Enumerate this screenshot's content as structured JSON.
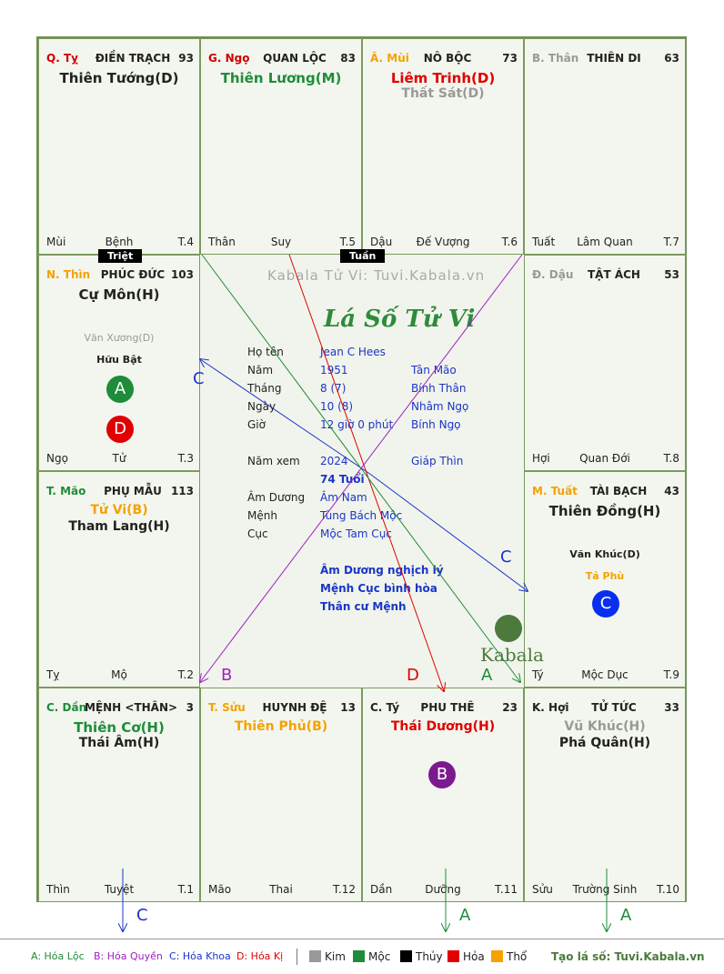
{
  "cells": {
    "ty_top": {
      "palace": "Q. Tỵ",
      "name": "ĐIỀN TRẠCH",
      "score": "93",
      "star1": "Thiên Tướng(D)",
      "bottom_left": "Mùi",
      "bottom_mid": "Bệnh",
      "bottom_right": "T.4"
    },
    "ngo": {
      "palace": "G. Ngọ",
      "name": "QUAN LỘC",
      "score": "83",
      "star1": "Thiên Lương(M)",
      "bottom_left": "Thân",
      "bottom_mid": "Suy",
      "bottom_right": "T.5"
    },
    "mui": {
      "palace": "Ã. Mùi",
      "name": "NÔ BỘC",
      "score": "73",
      "star1": "Liêm Trinh(D)",
      "star2": "Thất Sát(D)",
      "bottom_left": "Dậu",
      "bottom_mid": "Đế Vượng",
      "bottom_right": "T.6"
    },
    "than": {
      "palace": "B. Thân",
      "name": "THIÊN DI",
      "score": "63",
      "bottom_left": "Tuất",
      "bottom_mid": "Lâm Quan",
      "bottom_right": "T.7"
    },
    "thin": {
      "palace": "N. Thìn",
      "name": "PHÚC ĐỨC",
      "score": "103",
      "star1": "Cự Môn(H)",
      "extra1": "Văn Xương(D)",
      "extra2": "Hữu Bật",
      "bottom_left": "Ngọ",
      "bottom_mid": "Tử",
      "bottom_right": "T.3"
    },
    "dau": {
      "palace": "Đ. Dậu",
      "name": "TẬT ÁCH",
      "score": "53",
      "bottom_left": "Hợi",
      "bottom_mid": "Quan Đới",
      "bottom_right": "T.8"
    },
    "mao": {
      "palace": "T. Mão",
      "name": "PHỤ MẪU",
      "score": "113",
      "star1": "Tử Vi(B)",
      "star2": "Tham Lang(H)",
      "bottom_left": "Tỵ",
      "bottom_mid": "Mộ",
      "bottom_right": "T.2"
    },
    "tuat": {
      "palace": "M. Tuất",
      "name": "TÀI BẠCH",
      "score": "43",
      "star1": "Thiên Đồng(H)",
      "extra1": "Văn Khúc(D)",
      "extra2": "Tả Phù",
      "bottom_left": "Tý",
      "bottom_mid": "Mộc Dục",
      "bottom_right": "T.9"
    },
    "dan": {
      "palace": "C. Dần",
      "name": "MỆNH <THÂN>",
      "score": "3",
      "star1": "Thiên Cơ(H)",
      "star2": "Thái Âm(H)",
      "bottom_left": "Thìn",
      "bottom_mid": "Tuyệt",
      "bottom_right": "T.1"
    },
    "suu": {
      "palace": "T. Sửu",
      "name": "HUYNH ĐỆ",
      "score": "13",
      "star1": "Thiên Phủ(B)",
      "bottom_left": "Mão",
      "bottom_mid": "Thai",
      "bottom_right": "T.12"
    },
    "ty_bot": {
      "palace": "C. Tý",
      "name": "PHU THÊ",
      "score": "23",
      "star1": "Thái Dương(H)",
      "bottom_left": "Dần",
      "bottom_mid": "Dưỡng",
      "bottom_right": "T.11"
    },
    "hoi": {
      "palace": "K. Hợi",
      "name": "TỬ TỨC",
      "score": "33",
      "star1": "Vũ Khúc(H)",
      "star2": "Phá Quân(H)",
      "bottom_left": "Sửu",
      "bottom_mid": "Trường Sinh",
      "bottom_right": "T.10"
    }
  },
  "tags": {
    "triet": "Triệt",
    "tuan": "Tuần"
  },
  "circles": {
    "a": "A",
    "b": "B",
    "c": "C",
    "d": "D"
  },
  "center": {
    "watermark": "Kabala Tử Vi: Tuvi.Kabala.vn",
    "title": "Lá Số Tử Vi",
    "ho_ten_label": "Họ tên",
    "ho_ten": "Jean C Hees",
    "nam_label": "Năm",
    "nam": "1951",
    "nam_can": "Tân Mão",
    "thang_label": "Tháng",
    "thang": "8  (7)",
    "thang_can": "Bính Thân",
    "ngay_label": "Ngày",
    "ngay": "10  (8)",
    "ngay_can": "Nhâm Ngọ",
    "gio_label": "Giờ",
    "gio": "12 giờ 0 phút",
    "gio_can": "Bính Ngọ",
    "nam_xem_label": "Năm xem",
    "nam_xem": "2024",
    "nam_xem_can": "Giáp Thìn",
    "tuoi": "74 Tuổi",
    "am_duong_label": "Âm Dương",
    "am_duong": "Âm Nam",
    "menh_label": "Mệnh",
    "menh": "Tùng Bách Mộc",
    "cuc_label": "Cục",
    "cuc": "Mộc Tam Cục",
    "note1": "Âm Dương nghịch lý",
    "note2": "Mệnh Cục bình hòa",
    "note3": "Thân cư Mệnh",
    "logo": "Kabala"
  },
  "arrow_labels": {
    "c1": "C",
    "c2": "C",
    "b": "B",
    "d": "D",
    "a": "A",
    "c3": "C",
    "a2": "A",
    "a3": "A"
  },
  "legend": {
    "a": "A: Hóa Lộc",
    "b": "B: Hóa Quyền",
    "c": "C: Hóa Khoa",
    "d": "D: Hóa Kị",
    "kim": "Kim",
    "moc": "Mộc",
    "thuy": "Thủy",
    "hoa": "Hỏa",
    "tho": "Thổ",
    "site": "Tạo lá số: Tuvi.Kabala.vn"
  },
  "colors": {
    "kim": "#999999",
    "moc": "#1e8c3a",
    "thuy": "#000000",
    "hoa": "#e00000",
    "tho": "#f5a100"
  }
}
